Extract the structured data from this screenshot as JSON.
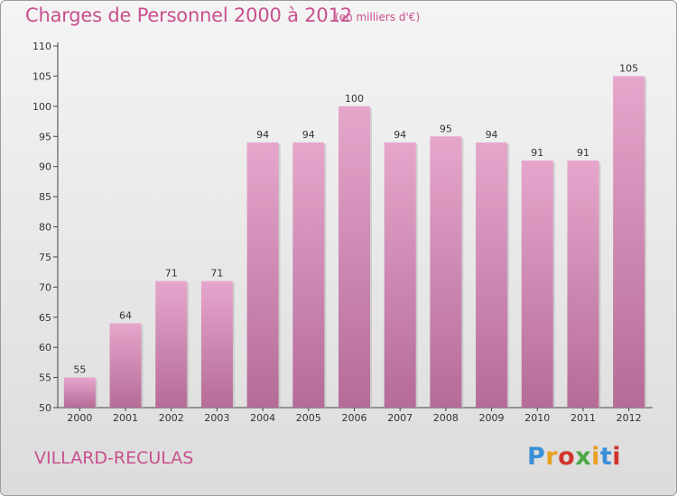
{
  "chart_data": {
    "type": "bar",
    "title": "Charges de Personnel 2000 à 2012",
    "subtitle": "(en milliers d'€)",
    "categories": [
      "2000",
      "2001",
      "2002",
      "2003",
      "2004",
      "2005",
      "2006",
      "2007",
      "2008",
      "2009",
      "2010",
      "2011",
      "2012"
    ],
    "values": [
      55,
      64,
      71,
      71,
      94,
      94,
      100,
      94,
      95,
      94,
      91,
      91,
      105
    ],
    "ylim": [
      50,
      110
    ],
    "yticks": [
      50,
      55,
      60,
      65,
      70,
      75,
      80,
      85,
      90,
      95,
      100,
      105,
      110
    ],
    "grid": false,
    "legend": "none",
    "bar_color": "#d68fb8"
  },
  "footer": {
    "commune": "VILLARD-RECULAS",
    "logo_text": "Proxiti",
    "logo_colors": [
      "#3a8fd6",
      "#e8a020",
      "#d0342c",
      "#4aa845",
      "#e8a020",
      "#3a8fd6",
      "#d0342c"
    ]
  },
  "colors": {
    "accent": "#c8508e"
  }
}
